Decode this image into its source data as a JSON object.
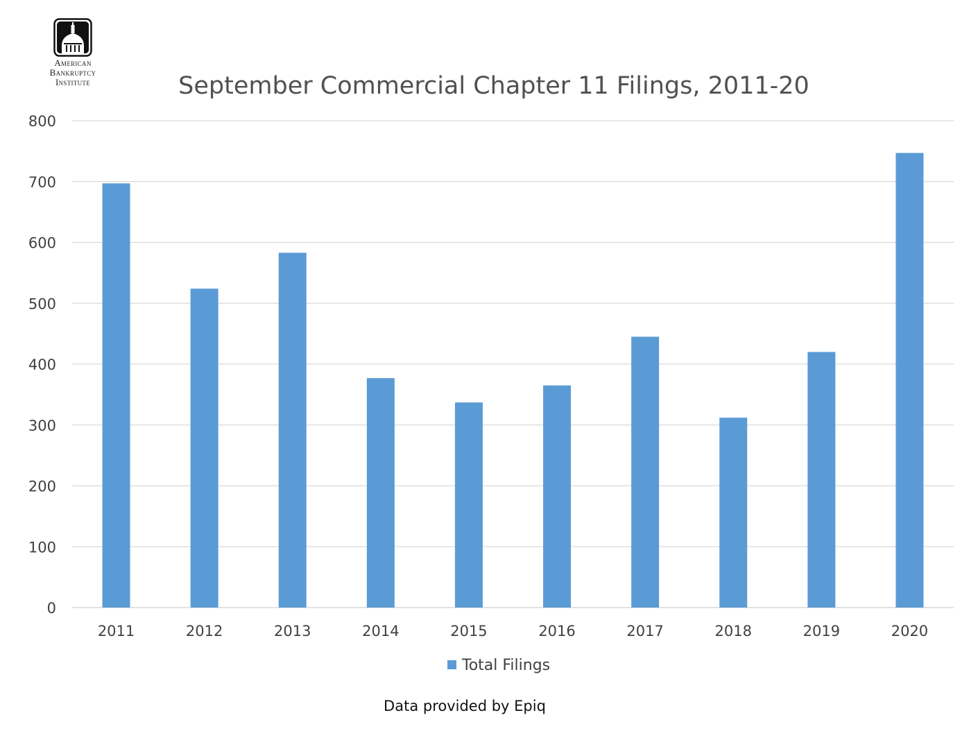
{
  "logo": {
    "line1": "American",
    "line2": "Bankruptcy",
    "line3": "Institute"
  },
  "footer": {
    "source": "Data provided by Epiq"
  },
  "colors": {
    "bar": "#5b9bd5",
    "grid": "#d9d9d9",
    "axis_text": "#404040",
    "title": "#505050"
  },
  "chart_data": {
    "type": "bar",
    "title": "September Commercial Chapter 11 Filings, 2011-20",
    "xlabel": "",
    "ylabel": "",
    "categories": [
      "2011",
      "2012",
      "2013",
      "2014",
      "2015",
      "2016",
      "2017",
      "2018",
      "2019",
      "2020"
    ],
    "series": [
      {
        "name": "Total Filings",
        "values": [
          697,
          524,
          583,
          377,
          337,
          365,
          445,
          312,
          420,
          747
        ]
      }
    ],
    "ylim": [
      0,
      800
    ],
    "yticks": [
      0,
      100,
      200,
      300,
      400,
      500,
      600,
      700,
      800
    ],
    "grid": true,
    "legend": "bottom-center"
  }
}
